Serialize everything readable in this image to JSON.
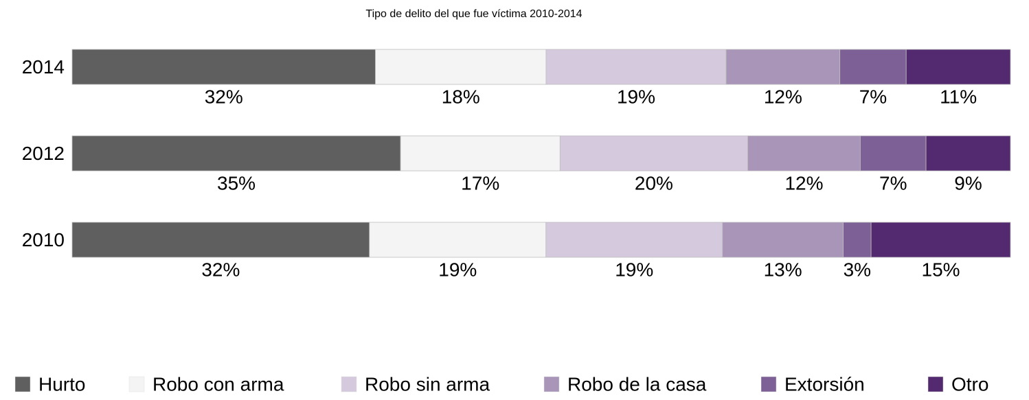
{
  "chart_data": {
    "type": "stacked_barh",
    "title": "Tipo de delito del que fue víctima 2010-2014",
    "categories": [
      "2014",
      "2012",
      "2010"
    ],
    "series": [
      {
        "name": "Hurto",
        "color": "#5f5f5f",
        "values": [
          32,
          35,
          32
        ],
        "value_labels": [
          "32%",
          "35%",
          "32%"
        ]
      },
      {
        "name": "Robo con arma",
        "color": "#f4f4f4",
        "values": [
          18,
          17,
          19
        ],
        "value_labels": [
          "18%",
          "17%",
          "19%"
        ]
      },
      {
        "name": "Robo sin arma",
        "color": "#d5c9dd",
        "values": [
          19,
          20,
          19
        ],
        "value_labels": [
          "19%",
          "20%",
          "19%"
        ]
      },
      {
        "name": "Robo de la casa",
        "color": "#a895b8",
        "values": [
          12,
          12,
          13
        ],
        "value_labels": [
          "12%",
          "12%",
          "13%"
        ]
      },
      {
        "name": "Extorsión",
        "color": "#7d6096",
        "values": [
          7,
          7,
          3
        ],
        "value_labels": [
          "7%",
          "7%",
          "3%"
        ]
      },
      {
        "name": "Otro",
        "color": "#532a6f",
        "values": [
          11,
          9,
          15
        ],
        "value_labels": [
          "11%",
          "9%",
          "15%"
        ]
      }
    ],
    "legend": "bottom"
  }
}
